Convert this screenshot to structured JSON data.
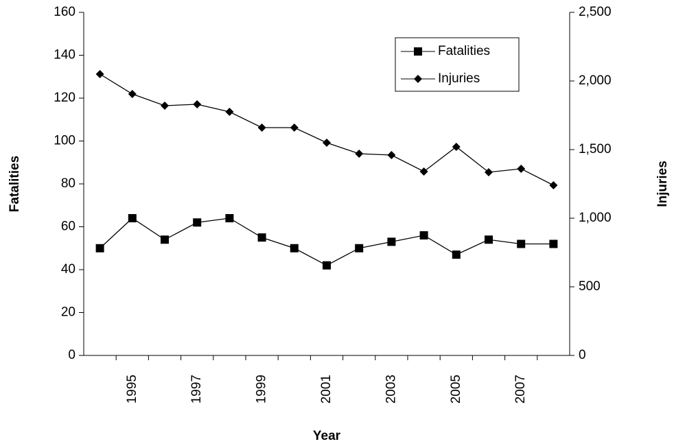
{
  "chart_data": {
    "type": "line",
    "x_label": "Year",
    "y_label": "Fatalities",
    "y2_label": "Injuries",
    "categories": [
      null,
      "1995",
      null,
      "1997",
      null,
      "1999",
      null,
      "2001",
      null,
      "2003",
      null,
      "2005",
      null,
      "2007",
      null
    ],
    "series": [
      {
        "name": "Fatalities",
        "color": "#000000",
        "marker": "square",
        "values": [
          50,
          64,
          54,
          62,
          64,
          55,
          50,
          42,
          50,
          53,
          56,
          47,
          54,
          52,
          52
        ]
      },
      {
        "name": "Injuries",
        "color": "#000000",
        "marker": "diamond",
        "axis": "y2",
        "values": [
          2050,
          1905,
          1820,
          1830,
          1775,
          1660,
          1660,
          1550,
          1470,
          1460,
          1340,
          1520,
          1335,
          1360,
          1240
        ]
      }
    ],
    "ylim": [
      0,
      160
    ],
    "yticks": [
      0,
      20,
      40,
      60,
      80,
      100,
      120,
      140,
      160
    ],
    "y2lim": [
      0,
      2500
    ],
    "y2ticks": [
      0,
      500,
      {
        "value": 1000,
        "label": "1,000"
      },
      {
        "value": 1500,
        "label": "1,500"
      },
      {
        "value": 2000,
        "label": "2,000"
      },
      {
        "value": 2500,
        "label": "2,500"
      }
    ],
    "grid": false,
    "legend": "upper right"
  }
}
